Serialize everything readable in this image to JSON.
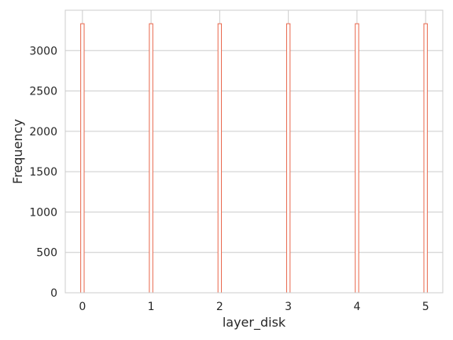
{
  "chart_data": {
    "type": "bar",
    "subtype": "histogram",
    "title": "",
    "xlabel": "layer_disk",
    "ylabel": "Frequency",
    "xlim": [
      -0.25,
      5.25
    ],
    "ylim": [
      0,
      3500
    ],
    "x_ticks": [
      0,
      1,
      2,
      3,
      4,
      5
    ],
    "y_ticks": [
      0,
      500,
      1000,
      1500,
      2000,
      2500,
      3000
    ],
    "bin_width": 0.05,
    "categories": [
      "0",
      "1",
      "2",
      "3",
      "4",
      "5"
    ],
    "x": [
      0,
      1,
      2,
      3,
      4,
      5
    ],
    "values": [
      3333,
      3333,
      3333,
      3333,
      3333,
      3333
    ],
    "grid": true,
    "legend": "none",
    "bar_edge_color": "#e8654a",
    "bar_fill_color": "#ffffff",
    "grid_color": "#cccccc",
    "spine_color": "#cccccc"
  }
}
